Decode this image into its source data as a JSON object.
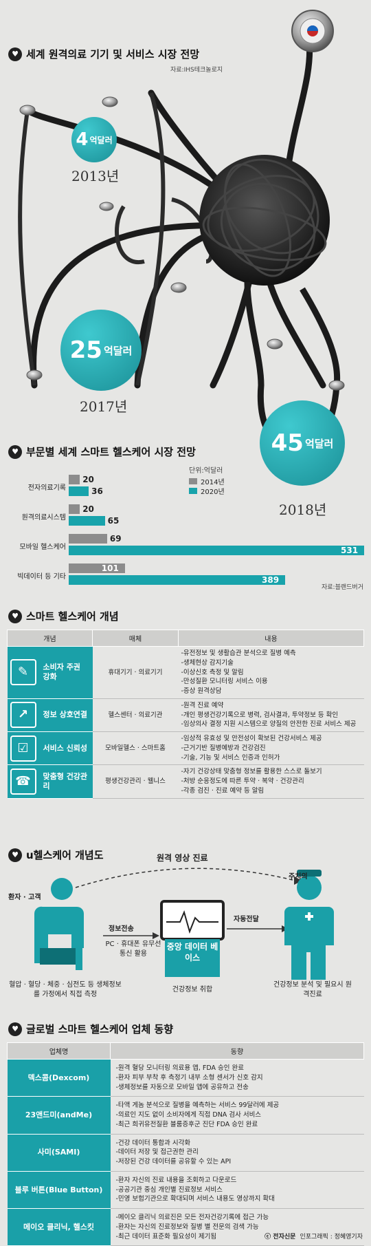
{
  "section1": {
    "title": "세계 원격의료 기기 및 서비스 시장 전망",
    "source": "자료:IHS테크놀로지",
    "bubbles": [
      {
        "value": "4",
        "unit": "억달러",
        "year": "2013년"
      },
      {
        "value": "25",
        "unit": "억달러",
        "year": "2017년"
      },
      {
        "value": "45",
        "unit": "억달러",
        "year": "2018년"
      }
    ]
  },
  "section2": {
    "title": "부문별 세계 스마트 헬스케어 시장 전망",
    "unit": "단위:억달러",
    "source": "자료:블랜드버거",
    "legend": [
      "2014년",
      "2020년"
    ]
  },
  "chart_data": {
    "type": "bar",
    "categories": [
      "전자의료기록",
      "원격의료시스템",
      "모바일 헬스케어",
      "빅데이터 등 기타"
    ],
    "series": [
      {
        "name": "2014년",
        "values": [
          20,
          20,
          69,
          101
        ]
      },
      {
        "name": "2020년",
        "values": [
          36,
          65,
          531,
          389
        ]
      }
    ],
    "colors": {
      "2014년": "#8c8c8c",
      "2020년": "#18a3ab"
    }
  },
  "section3": {
    "title": "스마트 헬스케어 개념",
    "headers": [
      "개념",
      "매체",
      "내용"
    ],
    "rows": [
      {
        "concept": "소비자 주권 강화",
        "icon": "presenter-icon",
        "media": "휴대기기 · 의료기기",
        "items": [
          "-유전정보 및 생활습관 분석으로 질병 예측",
          "-생체현상 감지기술",
          "-이상신호 측정 및 알림",
          "-만성질환 모니터링 서비스 이용",
          "-증상 원격상담"
        ]
      },
      {
        "concept": "정보 상호연결",
        "icon": "chart-people-icon",
        "media": "헬스센터 · 의료기관",
        "items": [
          "-원격 진료 예약",
          "-개인 평생건강기록으로 병력, 검사결과, 투약정보 등 확인",
          "-임상의사 결정 지원 시스템으로 양질의 안전한 진료 서비스 제공"
        ]
      },
      {
        "concept": "서비스 신뢰성",
        "icon": "checklist-icon",
        "media": "모바일헬스 · 스마트홈",
        "items": [
          "-임상적 유효성 및 안전성이 확보된 건강서비스 제공",
          "-근거기반 질병예방과 건강검진",
          "-기술, 기능 및 서비스 인증과 인허가"
        ]
      },
      {
        "concept": "맞춤형 건강관리",
        "icon": "hand-phone-icon",
        "media": "평생건강관리 · 웰니스",
        "items": [
          "-자기 건강상태 맞춤형 정보를 활용한 스스로 돌보기",
          "-처방 순응정도에 따른 투약 · 복약 · 건강관리",
          "-각종 검진 · 진료 예약 등 알림"
        ]
      }
    ]
  },
  "section4": {
    "title": "u헬스케어 개념도",
    "remote_label": "원격 영상 진료",
    "patient_label": "환자 · 고객",
    "doctor_label": "주치의",
    "send_label": "정보전송",
    "send_desc": "PC · 휴대폰 유무선 통신 활용",
    "center_label": "중앙 데이터 베이스",
    "auto_label": "자동전달",
    "patient_desc": "혈압 · 혈당 · 체중 · 심전도 등 생체정보를 가정에서 직접 측정",
    "center_desc": "건강정보 취합",
    "doctor_desc": "건강정보 분석 및 필요시 원격진료"
  },
  "section5": {
    "title": "글로벌 스마트 헬스케어 업체 동향",
    "headers": [
      "업체명",
      "동향"
    ],
    "rows": [
      {
        "name": "덱스콤(Dexcom)",
        "items": [
          "-원격 혈당 모니터링 의료용 앱, FDA 승인 완료",
          "-환자 피부 부착 후 측정기 내부 소형 센서가 신호 감지",
          "-생체정보를 자동으로 모바일 앱에 공유하고 전송"
        ]
      },
      {
        "name": "23앤드미(andMe)",
        "items": [
          "-타액 게놈 분석으로 질병을 예측하는 서비스 99달러에 제공",
          "-의료인 지도 없이 소비자에게 직접 DNA 검사 서비스",
          "-최근 희귀유전질환 블룸증후군 진단 FDA 승인 완료"
        ]
      },
      {
        "name": "사미(SAMI)",
        "items": [
          "-건강 데이터 통합과 시각화",
          "-데이터 저장 및 접근권한 관리",
          "-저장된 건강 데이터를 공유할 수 있는 API"
        ]
      },
      {
        "name": "블루 버튼(Blue Button)",
        "items": [
          "-환자 자신의 진료 내용을 조회하고 다운로드",
          "-공공기관 중심 개인별 진료정보 서비스",
          "-민영 보험기관으로 확대되며 서비스 내용도 영상까지 확대"
        ]
      },
      {
        "name": "메이오 클리닉, 헬스킷",
        "items": [
          "-메이오 클리닉 의료진은 모든 전자건강기록에 접근 가능",
          "-환자는 자신의 진료정보와 질병 별 전문의 검색 가능",
          "-최근 데이터 표준화 필요성이 제기됨"
        ]
      }
    ]
  },
  "footer": {
    "brand": "ⓒ 전자신문",
    "credit": "인포그래픽 : 정혜영기자"
  }
}
